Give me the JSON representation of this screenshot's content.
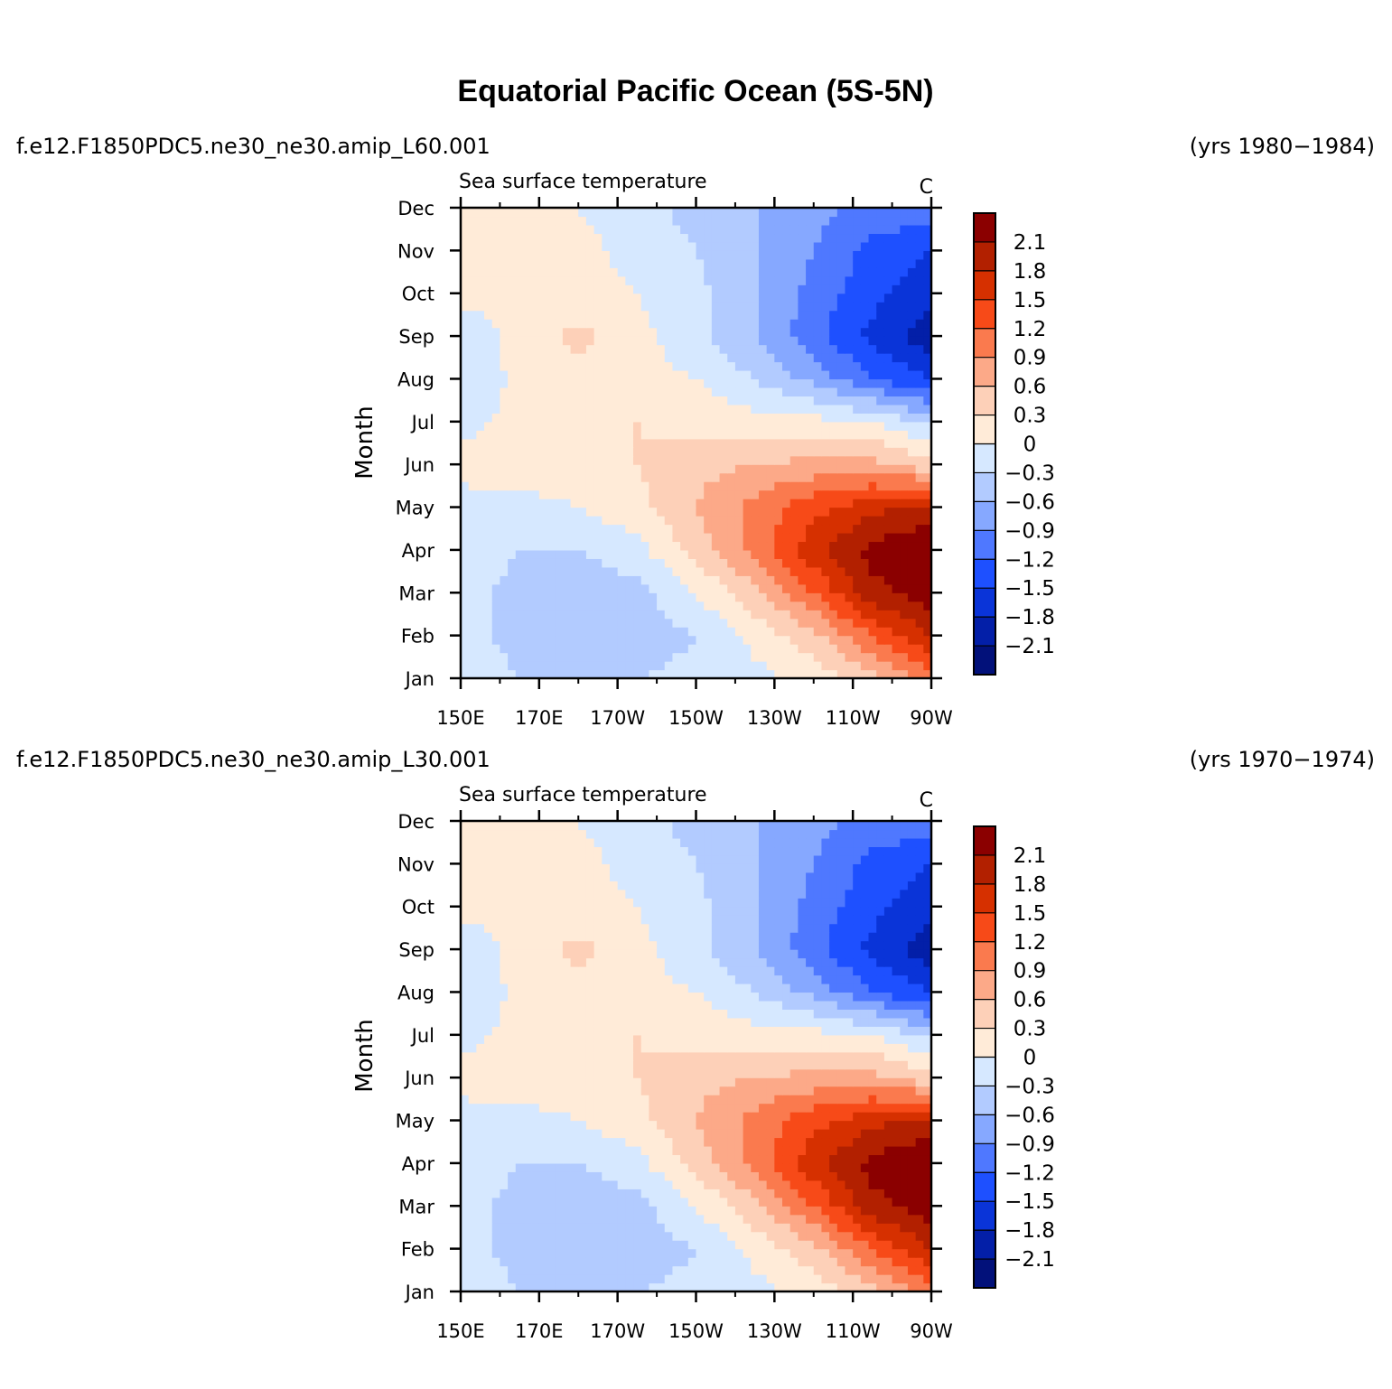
{
  "figure": {
    "title": "Equatorial Pacific Ocean (5S-5N)"
  },
  "legend": {
    "levels": [
      "2.1",
      "1.8",
      "1.5",
      "1.2",
      "0.9",
      "0.6",
      "0.3",
      "0",
      "−0.3",
      "−0.6",
      "−0.9",
      "−1.2",
      "−1.5",
      "−1.8",
      "−2.1"
    ],
    "colors": [
      "#8b0000",
      "#b22000",
      "#d63000",
      "#f74a18",
      "#fa7a4e",
      "#fca988",
      "#fdd0b8",
      "#ffebd8",
      "#d6e8ff",
      "#b2cbff",
      "#86a8ff",
      "#4f78ff",
      "#1e50ff",
      "#0a34d8",
      "#031fa8",
      "#02117a"
    ]
  },
  "chart_data": [
    {
      "type": "heatmap",
      "run_label": "f.e12.F1850PDC5.ne30_ne30.amip_L60.001",
      "years_label": "(yrs 1980−1984)",
      "variable_label": "Sea surface temperature",
      "units": "C",
      "ylabel": "Month",
      "x_ticks": [
        "150E",
        "170E",
        "170W",
        "150W",
        "130W",
        "110W",
        "90W"
      ],
      "y_ticks": [
        "Jan",
        "Feb",
        "Mar",
        "Apr",
        "May",
        "Jun",
        "Jul",
        "Aug",
        "Sep",
        "Oct",
        "Nov",
        "Dec"
      ],
      "x_range": [
        150,
        270
      ],
      "y_range": [
        1,
        12
      ],
      "x": [
        150,
        165,
        180,
        195,
        210,
        225,
        240,
        255,
        270
      ],
      "y": [
        1,
        2,
        3,
        4,
        5,
        6,
        7,
        8,
        9,
        10,
        11,
        12
      ],
      "z": [
        [
          -0.1,
          -0.3,
          -0.4,
          -0.3,
          -0.2,
          -0.1,
          0.1,
          0.5,
          1.0
        ],
        [
          -0.2,
          -0.4,
          -0.6,
          -0.5,
          -0.3,
          0.1,
          0.5,
          1.2,
          1.8
        ],
        [
          -0.2,
          -0.4,
          -0.5,
          -0.4,
          0.0,
          0.5,
          1.2,
          2.0,
          2.3
        ],
        [
          -0.1,
          -0.3,
          -0.3,
          -0.1,
          0.4,
          1.0,
          1.7,
          2.2,
          2.4
        ],
        [
          -0.1,
          -0.1,
          0.0,
          0.2,
          0.6,
          1.0,
          1.4,
          1.7,
          1.9
        ],
        [
          0.1,
          0.1,
          0.2,
          0.3,
          0.5,
          0.6,
          0.7,
          0.7,
          0.4
        ],
        [
          -0.1,
          0.1,
          0.2,
          0.3,
          0.2,
          0.1,
          0.1,
          0.0,
          -0.4
        ],
        [
          -0.3,
          0.1,
          0.2,
          0.1,
          0.0,
          -0.3,
          -0.7,
          -1.2,
          -1.5
        ],
        [
          -0.2,
          0.1,
          0.4,
          0.1,
          -0.2,
          -0.6,
          -1.1,
          -1.6,
          -2.0
        ],
        [
          0.1,
          0.1,
          0.1,
          0.0,
          -0.2,
          -0.6,
          -1.0,
          -1.4,
          -1.7
        ],
        [
          0.1,
          0.1,
          0.1,
          -0.1,
          -0.3,
          -0.6,
          -0.9,
          -1.3,
          -1.5
        ],
        [
          0.1,
          0.1,
          0.0,
          -0.2,
          -0.4,
          -0.6,
          -0.8,
          -1.0,
          -1.0
        ]
      ]
    },
    {
      "type": "heatmap",
      "run_label": "f.e12.F1850PDC5.ne30_ne30.amip_L30.001",
      "years_label": "(yrs 1970−1974)",
      "variable_label": "Sea surface temperature",
      "units": "C",
      "ylabel": "Month",
      "x_ticks": [
        "150E",
        "170E",
        "170W",
        "150W",
        "130W",
        "110W",
        "90W"
      ],
      "y_ticks": [
        "Jan",
        "Feb",
        "Mar",
        "Apr",
        "May",
        "Jun",
        "Jul",
        "Aug",
        "Sep",
        "Oct",
        "Nov",
        "Dec"
      ],
      "x_range": [
        150,
        270
      ],
      "y_range": [
        1,
        12
      ],
      "x": [
        150,
        165,
        180,
        195,
        210,
        225,
        240,
        255,
        270
      ],
      "y": [
        1,
        2,
        3,
        4,
        5,
        6,
        7,
        8,
        9,
        10,
        11,
        12
      ],
      "z": [
        [
          -0.1,
          -0.3,
          -0.4,
          -0.3,
          -0.2,
          -0.1,
          0.1,
          0.5,
          1.0
        ],
        [
          -0.2,
          -0.4,
          -0.6,
          -0.5,
          -0.3,
          0.1,
          0.5,
          1.2,
          1.8
        ],
        [
          -0.2,
          -0.4,
          -0.5,
          -0.4,
          0.0,
          0.5,
          1.2,
          2.0,
          2.3
        ],
        [
          -0.1,
          -0.3,
          -0.3,
          -0.1,
          0.4,
          1.0,
          1.7,
          2.2,
          2.4
        ],
        [
          -0.1,
          -0.1,
          0.0,
          0.2,
          0.6,
          1.0,
          1.4,
          1.7,
          1.9
        ],
        [
          0.1,
          0.1,
          0.2,
          0.3,
          0.5,
          0.6,
          0.7,
          0.7,
          0.4
        ],
        [
          -0.1,
          0.1,
          0.2,
          0.3,
          0.2,
          0.1,
          0.1,
          0.0,
          -0.4
        ],
        [
          -0.3,
          0.1,
          0.2,
          0.1,
          0.0,
          -0.3,
          -0.7,
          -1.2,
          -1.5
        ],
        [
          -0.2,
          0.1,
          0.4,
          0.1,
          -0.2,
          -0.6,
          -1.1,
          -1.6,
          -2.0
        ],
        [
          0.1,
          0.1,
          0.1,
          0.0,
          -0.2,
          -0.6,
          -1.0,
          -1.4,
          -1.7
        ],
        [
          0.1,
          0.1,
          0.1,
          -0.1,
          -0.3,
          -0.6,
          -0.9,
          -1.3,
          -1.5
        ],
        [
          0.1,
          0.1,
          0.0,
          -0.2,
          -0.4,
          -0.6,
          -0.8,
          -1.0,
          -1.0
        ]
      ]
    }
  ]
}
